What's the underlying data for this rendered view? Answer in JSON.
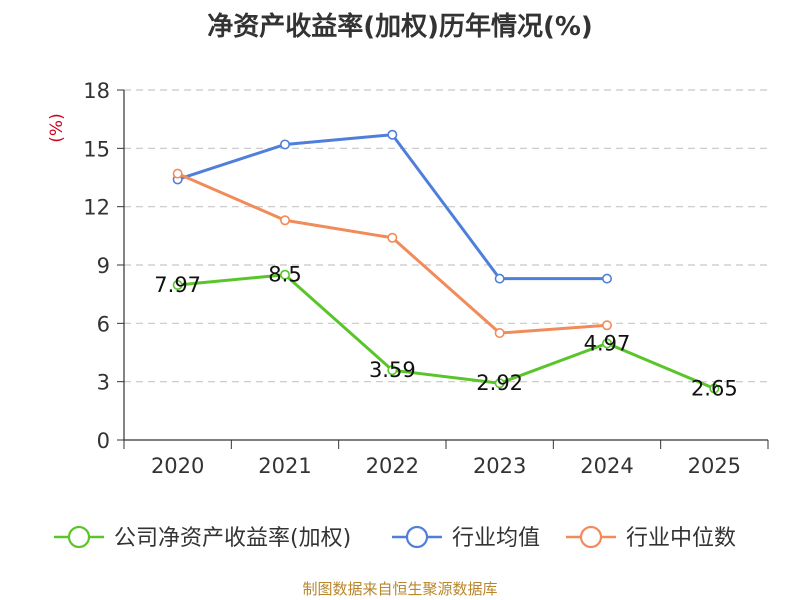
{
  "chart_data": {
    "type": "line",
    "title": "净资产收益率(加权)历年情况(%)",
    "ylabel": "(%)",
    "xlabel": "",
    "categories": [
      "2020",
      "2021",
      "2022",
      "2023",
      "2024",
      "2025"
    ],
    "ylim": [
      0,
      18
    ],
    "yticks": [
      0,
      3,
      6,
      9,
      12,
      15,
      18
    ],
    "grid": true,
    "legend_position": "bottom",
    "series": [
      {
        "name": "公司净资产收益率(加权)",
        "color": "#5ac52b",
        "values": [
          7.97,
          8.5,
          3.59,
          2.92,
          4.97,
          2.65
        ],
        "labels": [
          "7.97",
          "8.5",
          "3.59",
          "2.92",
          "4.97",
          "2.65"
        ]
      },
      {
        "name": "行业均值",
        "color": "#4f7fdb",
        "values": [
          13.4,
          15.2,
          15.7,
          8.3,
          8.3,
          null
        ]
      },
      {
        "name": "行业中位数",
        "color": "#f28b5a",
        "values": [
          13.7,
          11.3,
          10.4,
          5.5,
          5.9,
          null
        ]
      }
    ]
  },
  "footer": "制图数据来自恒生聚源数据库"
}
